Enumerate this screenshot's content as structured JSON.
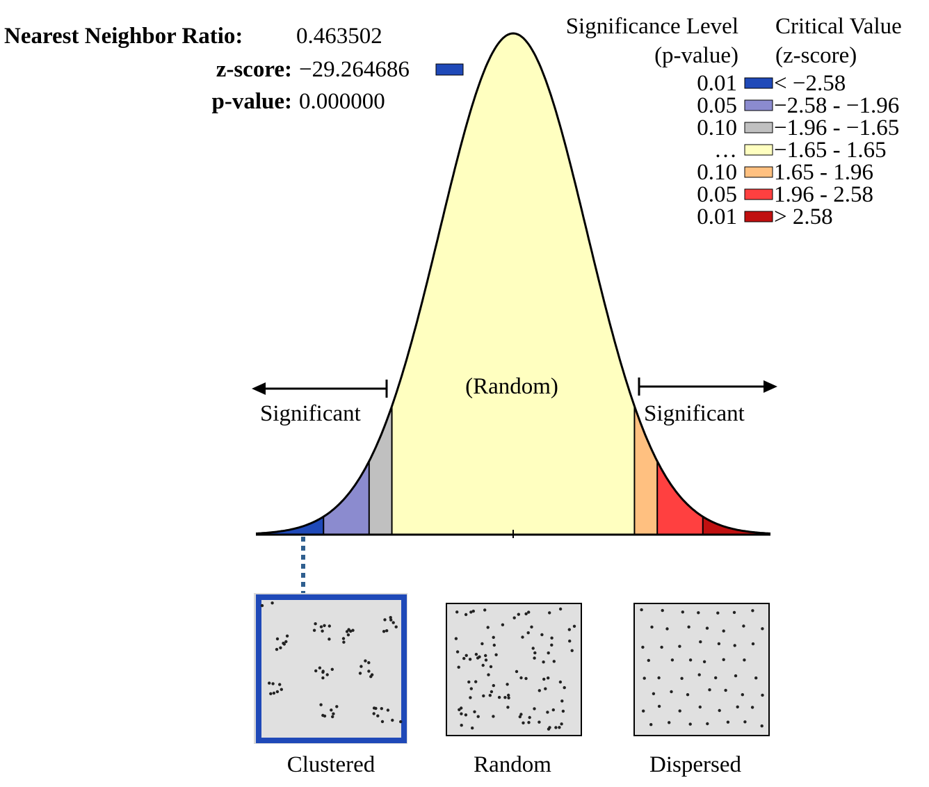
{
  "results": {
    "ratio_label": "Nearest Neighbor Ratio:",
    "ratio_value": "0.463502",
    "zscore_label": "z-score:",
    "zscore_value": "−29.264686",
    "pvalue_label": "p-value:",
    "pvalue_value": "0.000000",
    "marker_color": "#1f49b8"
  },
  "legend": {
    "col1_title_line1": "Significance Level",
    "col1_title_line2": "(p-value)",
    "col2_title_line1": "Critical Value",
    "col2_title_line2": "(z-score)",
    "rows": [
      {
        "p": "0.01",
        "z": "< −2.58",
        "color": "#1f49b8"
      },
      {
        "p": "0.05",
        "z": "−2.58 - −1.96",
        "color": "#8b8bcf"
      },
      {
        "p": "0.10",
        "z": "−1.96 - −1.65",
        "color": "#c0c0c0"
      },
      {
        "p": "…",
        "z": "−1.65 - 1.65",
        "color": "#ffffc0"
      },
      {
        "p": "0.10",
        "z": "1.65 - 1.96",
        "color": "#ffc080"
      },
      {
        "p": "0.05",
        "z": "1.96 - 2.58",
        "color": "#ff4040"
      },
      {
        "p": "0.01",
        "z": "> 2.58",
        "color": "#c01010"
      }
    ]
  },
  "chart_data": {
    "type": "area",
    "curve": "standard normal distribution",
    "x_domain": [
      -3.5,
      3.5
    ],
    "regions": [
      {
        "from": -3.5,
        "to": -2.58,
        "color": "#1f49b8"
      },
      {
        "from": -2.58,
        "to": -1.96,
        "color": "#8b8bcf"
      },
      {
        "from": -1.96,
        "to": -1.65,
        "color": "#c0c0c0"
      },
      {
        "from": -1.65,
        "to": 1.65,
        "color": "#ffffc0"
      },
      {
        "from": 1.65,
        "to": 1.96,
        "color": "#ffc080"
      },
      {
        "from": 1.96,
        "to": 2.58,
        "color": "#ff4040"
      },
      {
        "from": 2.58,
        "to": 3.5,
        "color": "#c01010"
      }
    ],
    "annotations": {
      "left_significant": "Significant",
      "right_significant": "Significant",
      "center": "(Random)"
    }
  },
  "patterns": [
    {
      "label": "Clustered",
      "highlighted": true,
      "highlight_color": "#1f49b8"
    },
    {
      "label": "Random",
      "highlighted": false
    },
    {
      "label": "Dispersed",
      "highlighted": false
    }
  ]
}
